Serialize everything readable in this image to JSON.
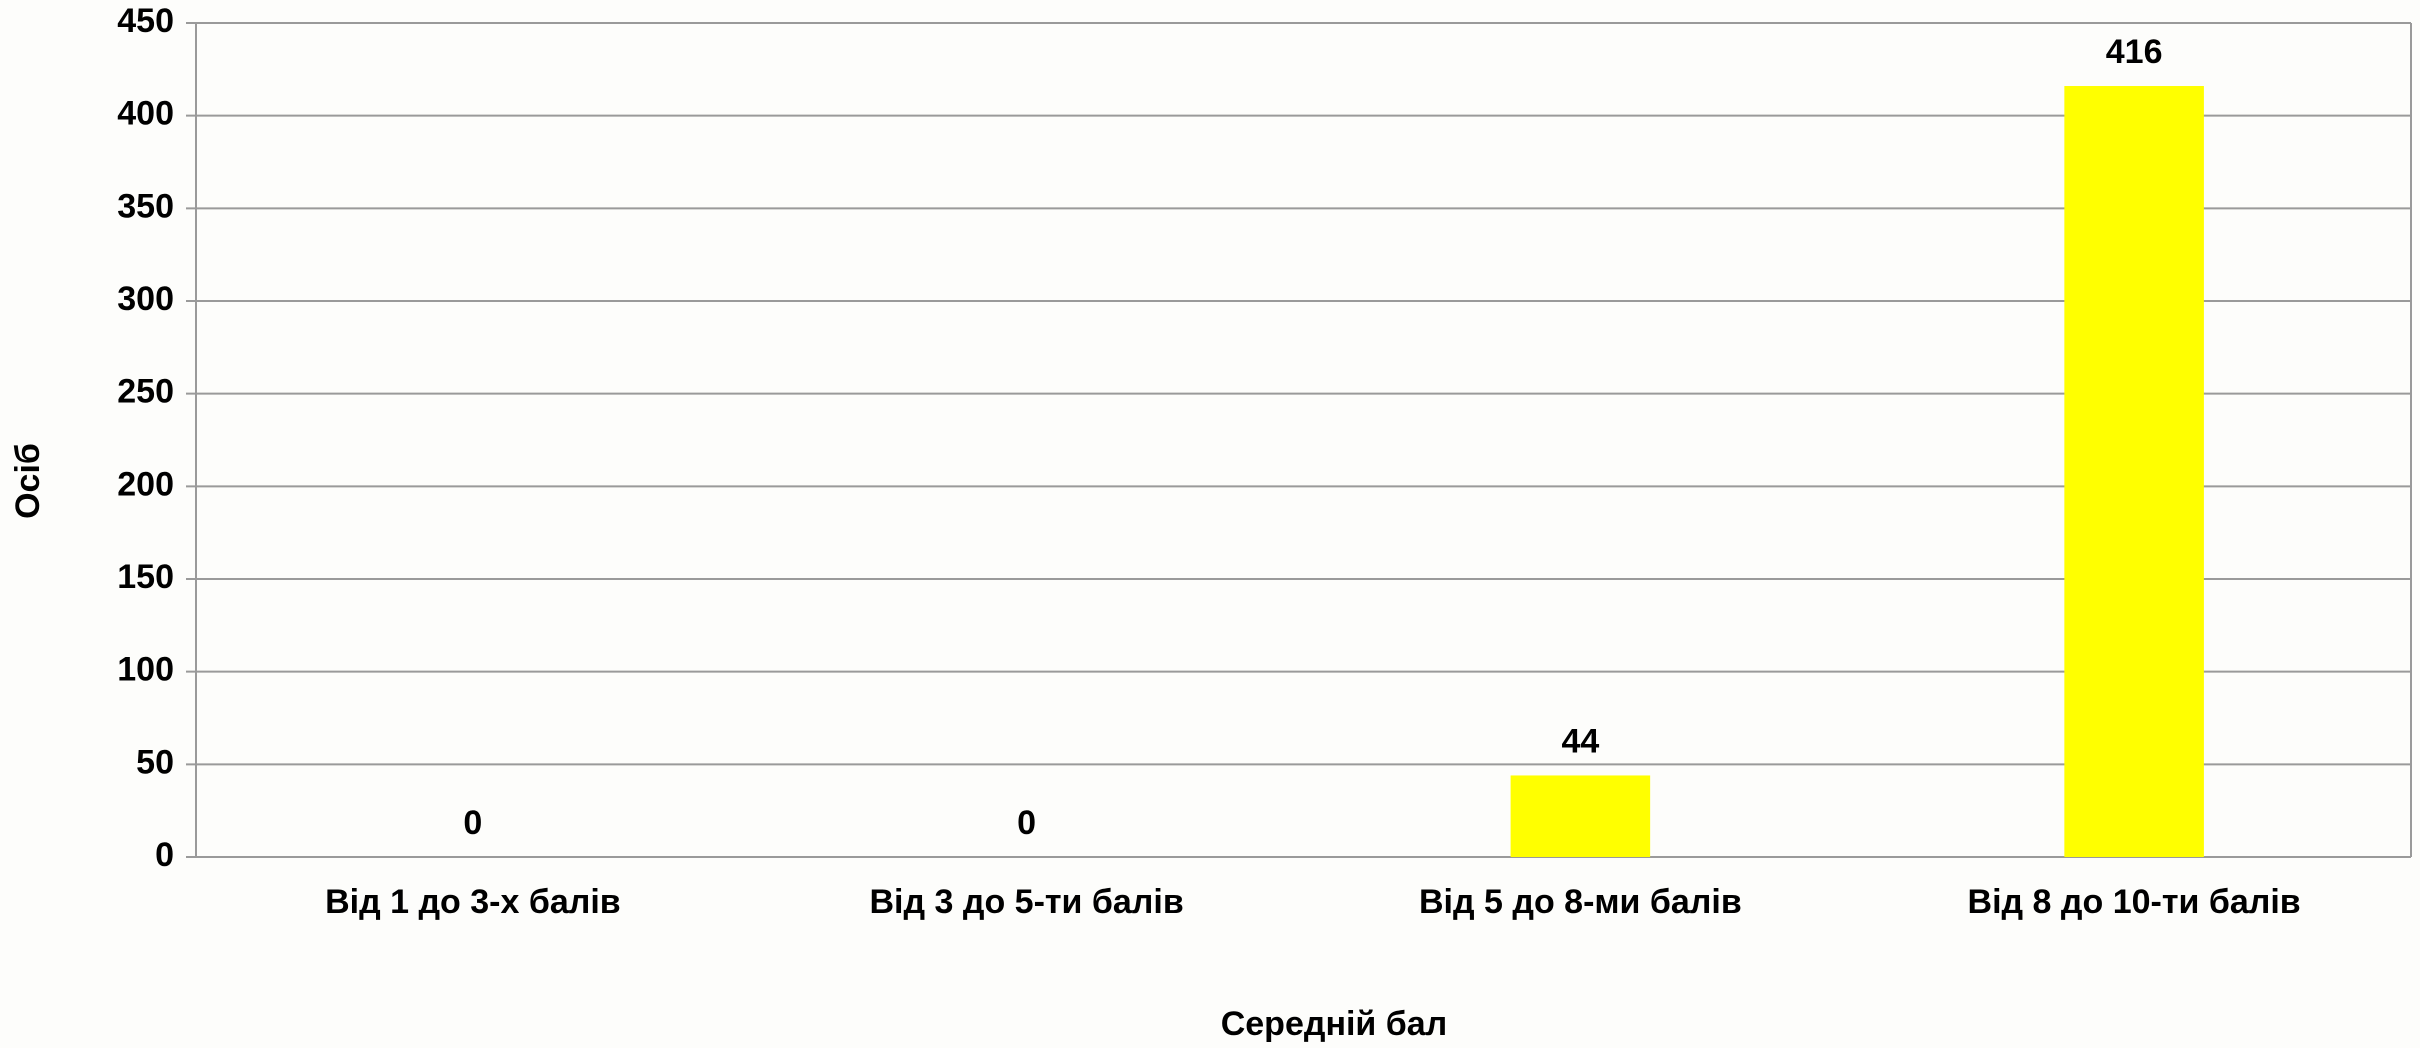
{
  "chart_data": {
    "type": "bar",
    "x_label": "Середній бал",
    "y_label": "Осіб",
    "categories": [
      "Від 1 до 3-х балів",
      "Від 3 до 5-ти балів",
      "Від 5 до 8-ми балів",
      "Від 8 до 10-ти балів"
    ],
    "values": [
      0,
      0,
      44,
      416
    ],
    "color": "#ffff00",
    "ylim": [
      0,
      450
    ],
    "yticks": [
      0,
      50,
      100,
      150,
      200,
      250,
      300,
      350,
      400,
      450
    ],
    "grid": true
  }
}
